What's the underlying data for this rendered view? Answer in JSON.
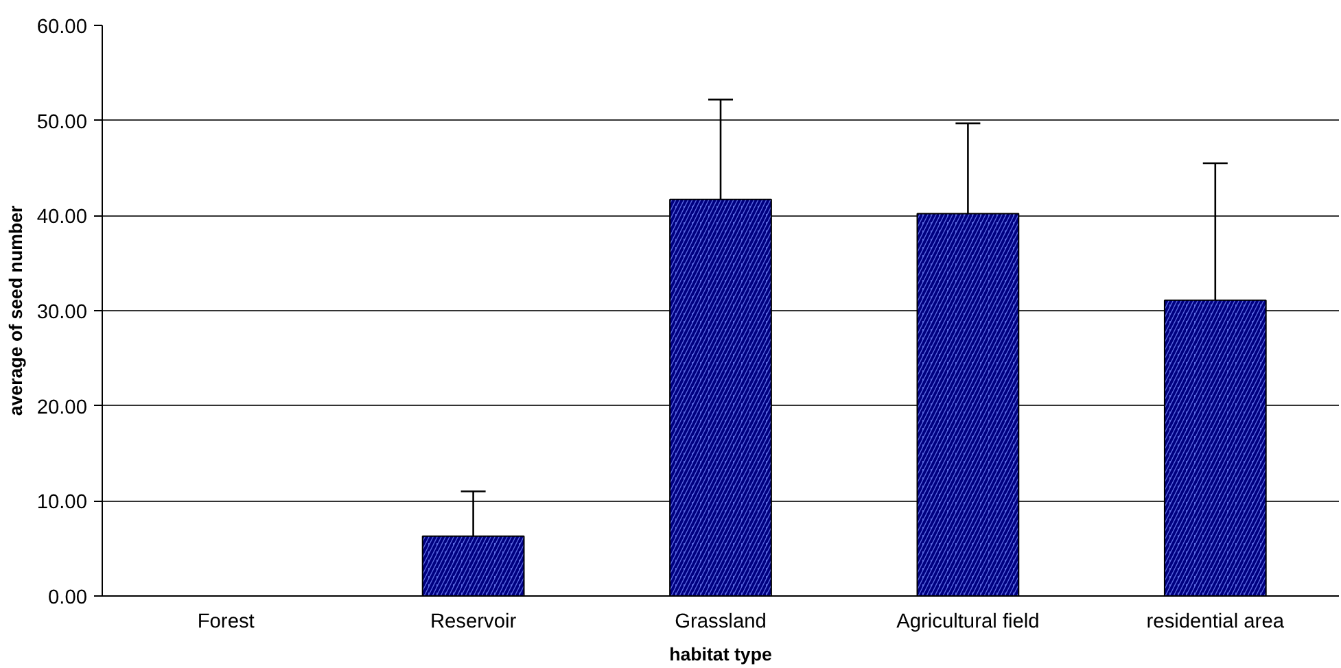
{
  "chart_data": {
    "type": "bar",
    "xlabel": "habitat type",
    "ylabel": "average of seed number",
    "categories": [
      "Forest",
      "Reservoir",
      "Grassland",
      "Agricultural field",
      "residential area"
    ],
    "values": [
      0,
      6.3,
      41.7,
      40.2,
      31.1
    ],
    "errors": [
      null,
      [
        6.3,
        11.0
      ],
      [
        41.7,
        52.2
      ],
      [
        40.2,
        49.7
      ],
      [
        31.1,
        45.5
      ]
    ],
    "color": "#5a68e0",
    "ylim": [
      0,
      60
    ],
    "yticks": [
      {
        "value": 0,
        "label": "0.00"
      },
      {
        "value": 10,
        "label": "10.00"
      },
      {
        "value": 20,
        "label": "20.00"
      },
      {
        "value": 30,
        "label": "30.00"
      },
      {
        "value": 40,
        "label": "40.00"
      },
      {
        "value": 50,
        "label": "50.00"
      },
      {
        "value": 60,
        "label": "60.00"
      }
    ],
    "grid": "y"
  }
}
